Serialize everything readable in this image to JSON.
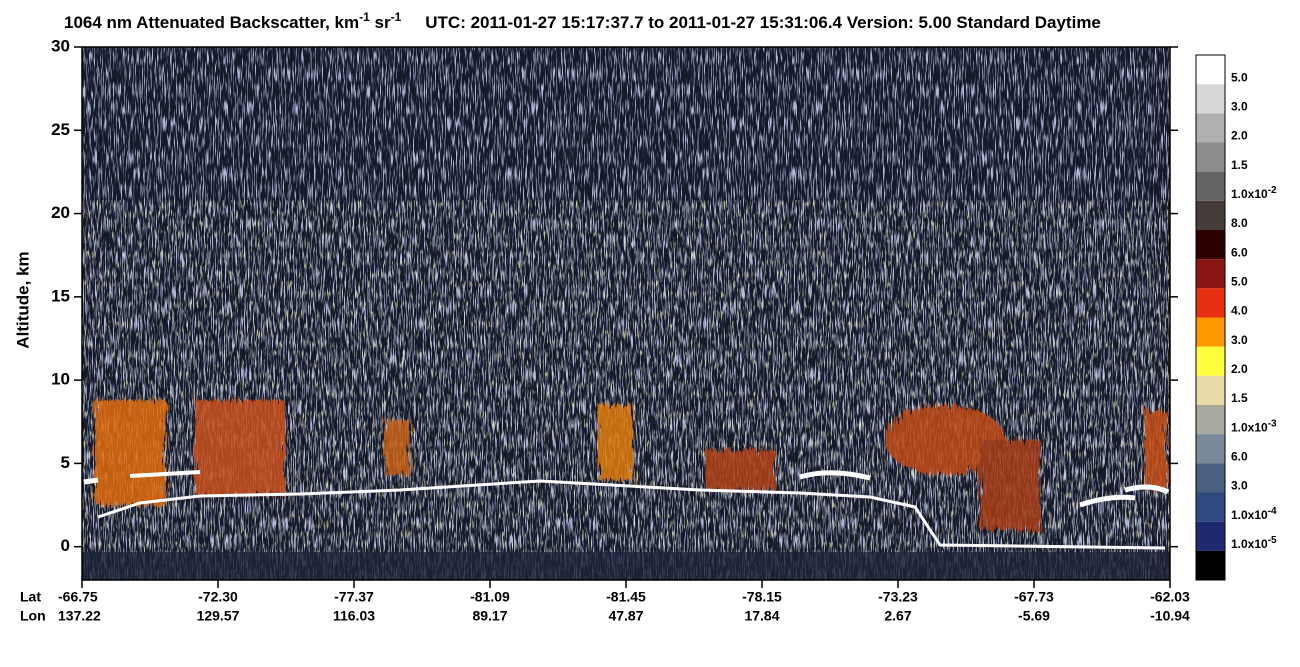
{
  "chart_data": {
    "type": "heatmap",
    "title": {
      "main": "1064 nm Attenuated Backscatter, km",
      "exp1": "-1",
      "unit2": " sr",
      "exp2": "-1",
      "rest": "UTC:  2011-01-27 15:17:37.7  to  2011-01-27 15:31:06.4     Version: 5.00  Standard  Daytime"
    },
    "ylabel": "Altitude, km",
    "ylim": [
      -2,
      30
    ],
    "yticks": [
      0,
      5,
      10,
      15,
      20,
      25,
      30
    ],
    "x_row_labels": [
      "Lat",
      "Lon"
    ],
    "x_labels": [
      {
        "lat": "-66.75",
        "lon": "137.22"
      },
      {
        "lat": "-72.30",
        "lon": "129.57"
      },
      {
        "lat": "-77.37",
        "lon": "116.03"
      },
      {
        "lat": "-81.09",
        "lon": "89.17"
      },
      {
        "lat": "-81.45",
        "lon": "47.87"
      },
      {
        "lat": "-78.15",
        "lon": "17.84"
      },
      {
        "lat": "-73.23",
        "lon": "2.67"
      },
      {
        "lat": "-67.73",
        "lon": "-5.69"
      },
      {
        "lat": "-62.03",
        "lon": "-10.94"
      }
    ],
    "colorbar": {
      "colors": [
        "#ffffff",
        "#d8d8d8",
        "#b0b0b0",
        "#8c8c8c",
        "#646464",
        "#463c3a",
        "#2e0000",
        "#8a1414",
        "#e83010",
        "#ff9900",
        "#ffff40",
        "#eadaa8",
        "#a8aaa0",
        "#7a8a9a",
        "#4a6080",
        "#2e4a80",
        "#1e2a70",
        "#000000"
      ],
      "labels": [
        {
          "text": "5.0"
        },
        {
          "text": "3.0"
        },
        {
          "text": "2.0"
        },
        {
          "text": "1.5"
        },
        {
          "text": "1.0x10",
          "exp": "-2"
        },
        {
          "text": "8.0"
        },
        {
          "text": "6.0"
        },
        {
          "text": "5.0"
        },
        {
          "text": "4.0"
        },
        {
          "text": "3.0"
        },
        {
          "text": "2.0"
        },
        {
          "text": "1.5"
        },
        {
          "text": "1.0x10",
          "exp": "-3"
        },
        {
          "text": "6.0"
        },
        {
          "text": "3.0"
        },
        {
          "text": "1.0x10",
          "exp": "-4"
        },
        {
          "text": "1.0x10",
          "exp": "-5"
        }
      ]
    }
  }
}
